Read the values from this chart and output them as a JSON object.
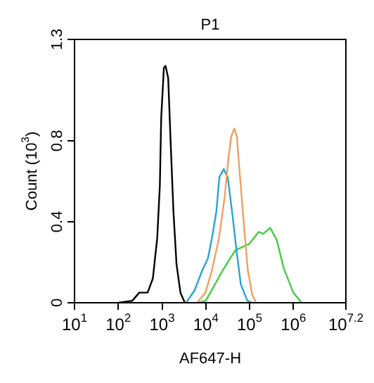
{
  "chart_data": {
    "type": "line",
    "title": "P1",
    "xlabel": "AF647-H",
    "ylabel": "Count (10$^{3}$)",
    "log": "x",
    "marker": "none",
    "legend": false,
    "grid": false,
    "xlim": [
      10,
      15848932
    ],
    "xticks": [
      {
        "value": 10,
        "label": "10$^{1}$"
      },
      {
        "value": 100,
        "label": "10$^{2}$"
      },
      {
        "value": 1000,
        "label": "10$^{3}$"
      },
      {
        "value": 10000,
        "label": "10$^{4}$"
      },
      {
        "value": 100000,
        "label": "10$^{5}$"
      },
      {
        "value": 1000000,
        "label": "10$^{6}$"
      },
      {
        "value": 15848932,
        "label": "10$^{7.2}$"
      }
    ],
    "ylim": [
      0,
      1.3
    ],
    "yticks": [
      0,
      0.4,
      0.8,
      1.3
    ],
    "series": [
      {
        "color": "#000000",
        "x": [
          101,
          209,
          302,
          468,
          617,
          776,
          891,
          955,
          1100,
          1200,
          1380,
          1580,
          1820,
          2140,
          2630,
          3310
        ],
        "values": [
          0,
          0.01,
          0.05,
          0.05,
          0.12,
          0.32,
          0.58,
          0.91,
          1.16,
          1.17,
          1.11,
          0.78,
          0.45,
          0.19,
          0.05,
          0
        ]
      },
      {
        "color": "#f0a060",
        "x": [
          6300,
          9800,
          13800,
          20000,
          26900,
          33100,
          38000,
          44700,
          51300,
          58900,
          74100,
          91200,
          115000,
          141000
        ],
        "values": [
          0,
          0.05,
          0.16,
          0.32,
          0.52,
          0.72,
          0.82,
          0.86,
          0.82,
          0.65,
          0.39,
          0.16,
          0.04,
          0
        ]
      },
      {
        "color": "#29a3d6",
        "x": [
          3550,
          5500,
          8300,
          11200,
          13800,
          17400,
          20400,
          25700,
          31600,
          39800,
          50100,
          63100,
          89100,
          115000
        ],
        "values": [
          0,
          0.06,
          0.16,
          0.22,
          0.32,
          0.45,
          0.62,
          0.66,
          0.62,
          0.45,
          0.26,
          0.09,
          0.01,
          0
        ]
      },
      {
        "color": "#44cc44",
        "x": [
          6800,
          10000,
          22900,
          31600,
          47900,
          97700,
          162000,
          204000,
          295000,
          417000,
          603000,
          1000000,
          1550000
        ],
        "values": [
          0,
          0.01,
          0.15,
          0.2,
          0.26,
          0.29,
          0.35,
          0.34,
          0.37,
          0.31,
          0.17,
          0.05,
          0
        ]
      }
    ]
  }
}
